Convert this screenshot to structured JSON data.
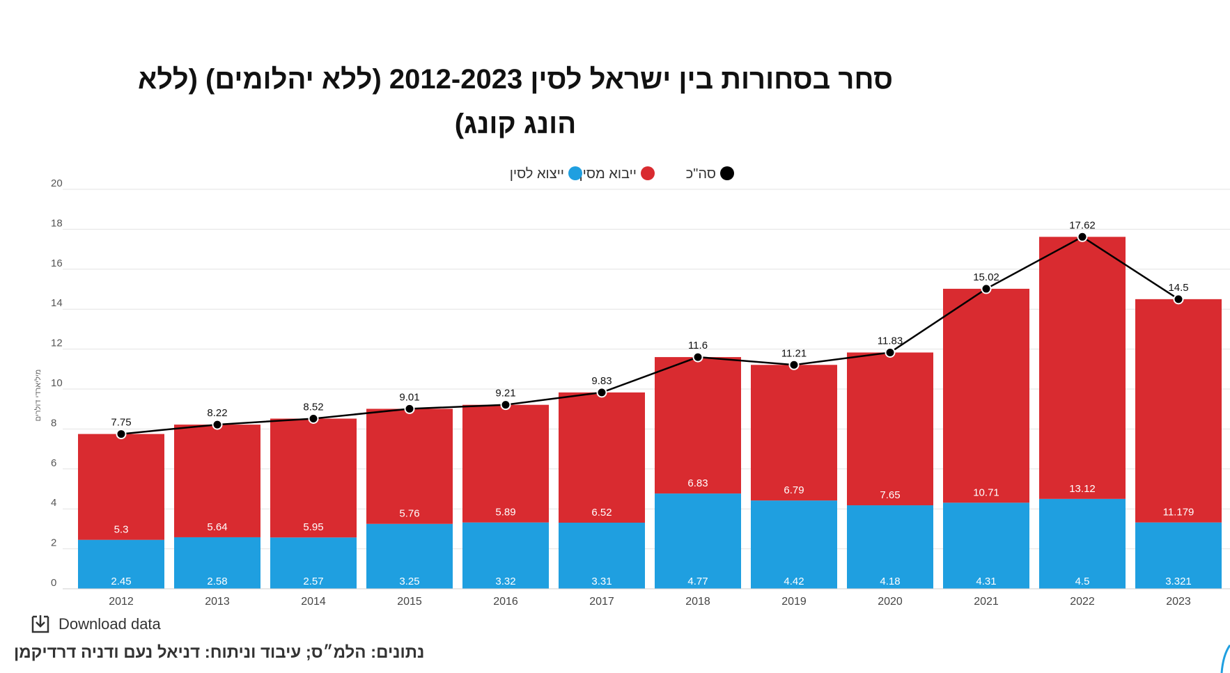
{
  "chart_data": {
    "type": "bar",
    "stacked": true,
    "title": "סחר בסחורות בין ישראל לסין 2012-2023 (ללא יהלומים) (ללא הונג קונג)",
    "ylabel": "מיליארדי דולרים",
    "xlabel": "",
    "ylim": [
      0,
      20
    ],
    "yticks": [
      0,
      2,
      4,
      6,
      8,
      10,
      12,
      14,
      16,
      18,
      20
    ],
    "grid": true,
    "legend_position": "top",
    "categories": [
      "2012",
      "2013",
      "2014",
      "2015",
      "2016",
      "2017",
      "2018",
      "2019",
      "2020",
      "2021",
      "2022",
      "2023"
    ],
    "series": [
      {
        "name": "ייצוא לסין",
        "kind": "bar",
        "color": "#1f9fe0",
        "values": [
          2.45,
          2.58,
          2.57,
          3.25,
          3.32,
          3.31,
          4.77,
          4.42,
          4.18,
          4.31,
          4.5,
          3.321
        ],
        "labels": [
          "2.45",
          "2.58",
          "2.57",
          "3.25",
          "3.32",
          "3.31",
          "4.77",
          "4.42",
          "4.18",
          "4.31",
          "4.5",
          "3.321"
        ]
      },
      {
        "name": "ייבוא מסין",
        "kind": "bar",
        "color": "#d92b30",
        "values": [
          5.3,
          5.64,
          5.95,
          5.76,
          5.89,
          6.52,
          6.83,
          6.79,
          7.65,
          10.71,
          13.12,
          11.179
        ],
        "labels": [
          "5.3",
          "5.64",
          "5.95",
          "5.76",
          "5.89",
          "6.52",
          "6.83",
          "6.79",
          "7.65",
          "10.71",
          "13.12",
          "11.179"
        ]
      },
      {
        "name": "סה\"כ",
        "kind": "line",
        "color": "#000000",
        "values": [
          7.75,
          8.22,
          8.52,
          9.01,
          9.21,
          9.83,
          11.6,
          11.21,
          11.83,
          15.02,
          17.62,
          14.5
        ],
        "labels": [
          "7.75",
          "8.22",
          "8.52",
          "9.01",
          "9.21",
          "9.83",
          "11.6",
          "11.21",
          "11.83",
          "15.02",
          "17.62",
          "14.5"
        ]
      }
    ]
  },
  "footer": {
    "download_label": "Download data",
    "download_icon": "download-icon",
    "source": "נתונים: הלמ״ס; עיבוד וניתוח: דניאל נעם ודניה דרדיקמן"
  }
}
